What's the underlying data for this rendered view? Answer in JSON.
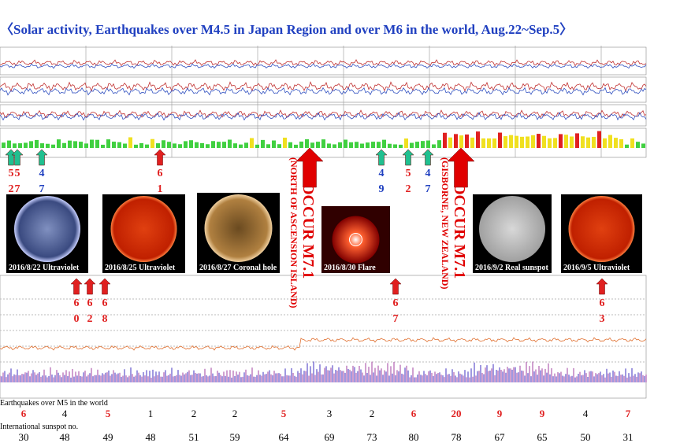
{
  "title": "〈Solar activity, Earthquakes over M4.5 in Japan Region and over M6 in the world, Aug.22~Sep.5〉",
  "top_markers": [
    {
      "top": "5",
      "bottom": "2"
    },
    {
      "top": "5",
      "bottom": "7"
    },
    {
      "top": "4",
      "bottom": "7"
    },
    {
      "top": "6",
      "bottom": "1"
    },
    {
      "top": "4",
      "bottom": "9"
    },
    {
      "top": "5",
      "bottom": "2"
    },
    {
      "top": "4",
      "bottom": "7"
    }
  ],
  "big_events": [
    {
      "line1": "OCCUR M7.1",
      "line2": "(NORTH OF ASCENSION ISLAND)"
    },
    {
      "line1": "OCCUR M7.1",
      "line2": "(GISBORNE, NEW ZEALAND)"
    }
  ],
  "images": [
    "2016/8/22 Ultraviolet",
    "2016/8/25 Ultraviolet",
    "2016/8/27 Coronal hole",
    "2016/8/30 Flare",
    "2016/9/2 Real sunspot",
    "2016/9/5 Ultraviolet"
  ],
  "bottom_markers": [
    {
      "top": "6",
      "bottom": "0"
    },
    {
      "top": "6",
      "bottom": "2"
    },
    {
      "top": "6",
      "bottom": "8"
    },
    {
      "top": "6",
      "bottom": "7"
    },
    {
      "top": "6",
      "bottom": "3"
    }
  ],
  "earthquakes": {
    "label": "Earthquakes over M5 in the world",
    "values": [
      6,
      4,
      5,
      1,
      2,
      2,
      5,
      3,
      2,
      6,
      20,
      9,
      9,
      4,
      7
    ],
    "colors": [
      "#e02020",
      "#000000",
      "#e02020",
      "#000000",
      "#000000",
      "#000000",
      "#e02020",
      "#000000",
      "#000000",
      "#e02020",
      "#e02020",
      "#e02020",
      "#e02020",
      "#000000",
      "#e02020"
    ]
  },
  "sunspots": {
    "label": "International sunspot no.",
    "values": [
      30,
      48,
      49,
      48,
      51,
      59,
      64,
      69,
      73,
      80,
      78,
      67,
      65,
      50,
      31
    ]
  }
}
